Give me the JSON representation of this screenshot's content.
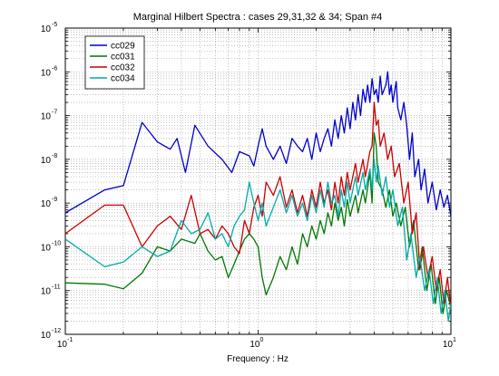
{
  "chart_data": {
    "type": "line",
    "title": "Marginal Hilbert Spectra : cases 29,31,32 & 34; Span #4",
    "xlabel": "Frequency : Hz",
    "ylabel": "",
    "xscale": "log",
    "yscale": "log",
    "xlim": [
      0.1,
      10
    ],
    "ylim": [
      1e-12,
      1e-05
    ],
    "grid": true,
    "legend_position": "top-left",
    "x_ticks": [
      {
        "base": "10",
        "exp": "-1"
      },
      {
        "base": "10",
        "exp": "0"
      },
      {
        "base": "10",
        "exp": "1"
      }
    ],
    "y_ticks": [
      {
        "base": "10",
        "exp": "-12"
      },
      {
        "base": "10",
        "exp": "-11"
      },
      {
        "base": "10",
        "exp": "-10"
      },
      {
        "base": "10",
        "exp": "-9"
      },
      {
        "base": "10",
        "exp": "-8"
      },
      {
        "base": "10",
        "exp": "-7"
      },
      {
        "base": "10",
        "exp": "-6"
      },
      {
        "base": "10",
        "exp": "-5"
      }
    ],
    "series": [
      {
        "name": "cc029",
        "color": "#0000cc",
        "points": [
          [
            0.1,
            6e-10
          ],
          [
            0.16,
            2e-09
          ],
          [
            0.2,
            2.5e-09
          ],
          [
            0.25,
            7e-08
          ],
          [
            0.3,
            2.5e-08
          ],
          [
            0.35,
            1.7e-08
          ],
          [
            0.38,
            3e-08
          ],
          [
            0.42,
            5e-09
          ],
          [
            0.47,
            6e-08
          ],
          [
            0.55,
            2e-08
          ],
          [
            0.65,
            1e-08
          ],
          [
            0.73,
            5e-09
          ],
          [
            0.8,
            1.5e-08
          ],
          [
            0.9,
            1.2e-08
          ],
          [
            0.95,
            7e-09
          ],
          [
            1.0,
            2e-08
          ],
          [
            1.05,
            5e-08
          ],
          [
            1.1,
            2e-08
          ],
          [
            1.2,
            1e-08
          ],
          [
            1.3,
            2e-08
          ],
          [
            1.4,
            8e-09
          ],
          [
            1.5,
            3e-08
          ],
          [
            1.6,
            2e-08
          ],
          [
            1.7,
            1.5e-08
          ],
          [
            1.8,
            3e-08
          ],
          [
            1.9,
            1e-08
          ],
          [
            2.0,
            4e-08
          ],
          [
            2.1,
            1.5e-08
          ],
          [
            2.2,
            3e-08
          ],
          [
            2.3,
            5e-08
          ],
          [
            2.4,
            2e-08
          ],
          [
            2.5,
            8e-08
          ],
          [
            2.6,
            3e-08
          ],
          [
            2.7,
            1e-07
          ],
          [
            2.8,
            4e-08
          ],
          [
            2.9,
            1.5e-07
          ],
          [
            3.0,
            5e-08
          ],
          [
            3.1,
            2e-07
          ],
          [
            3.2,
            8e-08
          ],
          [
            3.3,
            3e-07
          ],
          [
            3.4,
            1e-07
          ],
          [
            3.5,
            4e-07
          ],
          [
            3.6,
            2e-07
          ],
          [
            3.7,
            5e-07
          ],
          [
            3.8,
            2e-07
          ],
          [
            3.9,
            7e-07
          ],
          [
            4.0,
            3e-07
          ],
          [
            4.1,
            4e-07
          ],
          [
            4.2,
            2e-07
          ],
          [
            4.3,
            8e-07
          ],
          [
            4.4,
            3e-07
          ],
          [
            4.6,
            5e-07
          ],
          [
            4.7,
            1e-06
          ],
          [
            4.8,
            3e-07
          ],
          [
            4.9,
            5e-07
          ],
          [
            5.0,
            2e-07
          ],
          [
            5.2,
            6e-07
          ],
          [
            5.3,
            1.5e-07
          ],
          [
            5.5,
            8e-08
          ],
          [
            5.7,
            2e-07
          ],
          [
            5.9,
            6e-08
          ],
          [
            6.1,
            1e-08
          ],
          [
            6.3,
            4e-08
          ],
          [
            6.5,
            4e-09
          ],
          [
            6.8,
            1e-08
          ],
          [
            7.0,
            2e-09
          ],
          [
            7.3,
            6e-09
          ],
          [
            7.6,
            1e-09
          ],
          [
            8.0,
            3e-09
          ],
          [
            8.4,
            7e-10
          ],
          [
            8.8,
            2e-09
          ],
          [
            9.2,
            8e-10
          ],
          [
            9.6,
            1.5e-09
          ],
          [
            10.0,
            5e-10
          ]
        ]
      },
      {
        "name": "cc031",
        "color": "#007700",
        "points": [
          [
            0.1,
            1.5e-11
          ],
          [
            0.16,
            1.4e-11
          ],
          [
            0.2,
            1.1e-11
          ],
          [
            0.25,
            2.5e-11
          ],
          [
            0.3,
            1e-10
          ],
          [
            0.35,
            8e-11
          ],
          [
            0.4,
            1.5e-10
          ],
          [
            0.47,
            1.2e-10
          ],
          [
            0.5,
            2e-10
          ],
          [
            0.55,
            8e-11
          ],
          [
            0.6,
            5e-11
          ],
          [
            0.65,
            6e-11
          ],
          [
            0.7,
            2e-11
          ],
          [
            0.75,
            4e-11
          ],
          [
            0.8,
            8e-11
          ],
          [
            0.85,
            1.5e-10
          ],
          [
            0.9,
            2e-10
          ],
          [
            0.95,
            1.5e-10
          ],
          [
            1.0,
            1e-10
          ],
          [
            1.05,
            2e-11
          ],
          [
            1.1,
            8e-12
          ],
          [
            1.2,
            2e-11
          ],
          [
            1.3,
            6e-11
          ],
          [
            1.4,
            3e-11
          ],
          [
            1.5,
            1e-10
          ],
          [
            1.6,
            4e-11
          ],
          [
            1.7,
            2e-10
          ],
          [
            1.8,
            1e-10
          ],
          [
            1.9,
            3e-10
          ],
          [
            2.0,
            1.5e-10
          ],
          [
            2.1,
            4e-10
          ],
          [
            2.2,
            2e-10
          ],
          [
            2.3,
            6e-10
          ],
          [
            2.4,
            3e-10
          ],
          [
            2.5,
            1e-09
          ],
          [
            2.6,
            4e-10
          ],
          [
            2.7,
            8e-10
          ],
          [
            2.8,
            3e-10
          ],
          [
            2.9,
            1.2e-09
          ],
          [
            3.0,
            5e-10
          ],
          [
            3.2,
            1.5e-09
          ],
          [
            3.3,
            6e-10
          ],
          [
            3.5,
            2e-09
          ],
          [
            3.6,
            1e-09
          ],
          [
            3.8,
            5e-09
          ],
          [
            3.9,
            1e-09
          ],
          [
            4.0,
            4e-08
          ],
          [
            4.1,
            2e-08
          ],
          [
            4.2,
            3e-09
          ],
          [
            4.4,
            2e-09
          ],
          [
            4.6,
            8e-10
          ],
          [
            4.8,
            2e-09
          ],
          [
            5.0,
            5e-10
          ],
          [
            5.2,
            1e-09
          ],
          [
            5.5,
            3e-10
          ],
          [
            5.8,
            8e-10
          ],
          [
            6.1,
            1e-10
          ],
          [
            6.4,
            4e-10
          ],
          [
            6.8,
            3e-11
          ],
          [
            7.1,
            1e-10
          ],
          [
            7.5,
            1e-11
          ],
          [
            7.9,
            4e-11
          ],
          [
            8.3,
            5e-12
          ],
          [
            8.7,
            2e-11
          ],
          [
            9.1,
            3e-12
          ],
          [
            9.5,
            1e-11
          ],
          [
            10.0,
            4e-12
          ]
        ]
      },
      {
        "name": "cc032",
        "color": "#cc0000",
        "points": [
          [
            0.1,
            2e-10
          ],
          [
            0.16,
            9e-10
          ],
          [
            0.2,
            9e-10
          ],
          [
            0.25,
            1e-10
          ],
          [
            0.3,
            3e-10
          ],
          [
            0.35,
            5e-10
          ],
          [
            0.4,
            2.5e-10
          ],
          [
            0.45,
            1.5e-09
          ],
          [
            0.5,
            2e-10
          ],
          [
            0.55,
            2.5e-10
          ],
          [
            0.6,
            1.5e-10
          ],
          [
            0.65,
            3e-10
          ],
          [
            0.7,
            2e-10
          ],
          [
            0.75,
            1e-10
          ],
          [
            0.8,
            7e-11
          ],
          [
            0.85,
            4e-10
          ],
          [
            0.9,
            2e-10
          ],
          [
            0.95,
            8e-10
          ],
          [
            1.0,
            1.5e-09
          ],
          [
            1.05,
            5e-10
          ],
          [
            1.1,
            3e-09
          ],
          [
            1.2,
            1.5e-09
          ],
          [
            1.3,
            4e-09
          ],
          [
            1.4,
            8e-10
          ],
          [
            1.5,
            2e-09
          ],
          [
            1.6,
            6e-10
          ],
          [
            1.7,
            1.5e-09
          ],
          [
            1.8,
            5e-10
          ],
          [
            1.9,
            2e-09
          ],
          [
            2.0,
            8e-10
          ],
          [
            2.1,
            3e-09
          ],
          [
            2.2,
            1e-09
          ],
          [
            2.3,
            2e-09
          ],
          [
            2.4,
            7e-10
          ],
          [
            2.5,
            3e-09
          ],
          [
            2.6,
            1e-09
          ],
          [
            2.7,
            4e-09
          ],
          [
            2.8,
            1.5e-09
          ],
          [
            2.9,
            5e-09
          ],
          [
            3.0,
            2e-09
          ],
          [
            3.2,
            8e-09
          ],
          [
            3.3,
            3e-09
          ],
          [
            3.5,
            1e-08
          ],
          [
            3.6,
            4e-09
          ],
          [
            3.8,
            1.5e-08
          ],
          [
            3.9,
            2e-08
          ],
          [
            4.0,
            2e-07
          ],
          [
            4.1,
            6e-08
          ],
          [
            4.2,
            8e-08
          ],
          [
            4.3,
            2e-08
          ],
          [
            4.5,
            4e-08
          ],
          [
            4.7,
            1e-08
          ],
          [
            4.9,
            2e-08
          ],
          [
            5.1,
            4e-09
          ],
          [
            5.4,
            8e-09
          ],
          [
            5.7,
            1e-09
          ],
          [
            6.0,
            3e-09
          ],
          [
            6.3,
            2e-10
          ],
          [
            6.6,
            6e-10
          ],
          [
            6.9,
            3e-11
          ],
          [
            7.2,
            1e-10
          ],
          [
            7.6,
            2e-11
          ],
          [
            8.0,
            6e-11
          ],
          [
            8.4,
            1e-11
          ],
          [
            8.8,
            3e-11
          ],
          [
            9.2,
            5e-12
          ],
          [
            9.6,
            2e-11
          ],
          [
            10.0,
            4e-12
          ]
        ]
      },
      {
        "name": "cc034",
        "color": "#00aaaa",
        "points": [
          [
            0.1,
            1.5e-10
          ],
          [
            0.16,
            3.5e-11
          ],
          [
            0.2,
            4.5e-11
          ],
          [
            0.25,
            1e-10
          ],
          [
            0.3,
            6e-11
          ],
          [
            0.35,
            8e-11
          ],
          [
            0.4,
            4e-10
          ],
          [
            0.45,
            2e-10
          ],
          [
            0.5,
            2.5e-10
          ],
          [
            0.55,
            6e-10
          ],
          [
            0.6,
            1.5e-10
          ],
          [
            0.65,
            2e-10
          ],
          [
            0.7,
            1e-10
          ],
          [
            0.75,
            3e-10
          ],
          [
            0.8,
            5e-10
          ],
          [
            0.85,
            7e-10
          ],
          [
            0.9,
            3e-09
          ],
          [
            0.95,
            1e-09
          ],
          [
            1.0,
            4e-10
          ],
          [
            1.05,
            1e-09
          ],
          [
            1.1,
            3e-10
          ],
          [
            1.2,
            8e-10
          ],
          [
            1.3,
            2e-09
          ],
          [
            1.4,
            6e-10
          ],
          [
            1.5,
            1.5e-09
          ],
          [
            1.6,
            5e-10
          ],
          [
            1.7,
            1e-09
          ],
          [
            1.8,
            4e-10
          ],
          [
            1.9,
            1.5e-09
          ],
          [
            2.0,
            6e-10
          ],
          [
            2.1,
            2e-09
          ],
          [
            2.2,
            8e-10
          ],
          [
            2.3,
            3e-09
          ],
          [
            2.4,
            1e-09
          ],
          [
            2.5,
            1.5e-09
          ],
          [
            2.6,
            5e-10
          ],
          [
            2.7,
            2e-09
          ],
          [
            2.8,
            8e-10
          ],
          [
            2.9,
            3e-09
          ],
          [
            3.0,
            1e-09
          ],
          [
            3.2,
            4e-09
          ],
          [
            3.3,
            1.5e-09
          ],
          [
            3.5,
            5e-09
          ],
          [
            3.6,
            2e-09
          ],
          [
            3.8,
            6e-09
          ],
          [
            3.9,
            2e-09
          ],
          [
            4.0,
            1e-08
          ],
          [
            4.1,
            3e-09
          ],
          [
            4.2,
            7e-09
          ],
          [
            4.4,
            1.5e-09
          ],
          [
            4.6,
            4e-09
          ],
          [
            4.8,
            8e-10
          ],
          [
            5.0,
            2e-09
          ],
          [
            5.3,
            3e-10
          ],
          [
            5.6,
            8e-10
          ],
          [
            5.9,
            5e-11
          ],
          [
            6.2,
            2e-10
          ],
          [
            6.6,
            2e-11
          ],
          [
            6.9,
            6e-11
          ],
          [
            7.3,
            1e-11
          ],
          [
            7.7,
            3e-11
          ],
          [
            8.1,
            5e-12
          ],
          [
            8.5,
            2e-11
          ],
          [
            8.9,
            3e-12
          ],
          [
            9.3,
            1e-11
          ],
          [
            9.7,
            2e-12
          ],
          [
            10.0,
            5e-12
          ]
        ]
      }
    ]
  }
}
